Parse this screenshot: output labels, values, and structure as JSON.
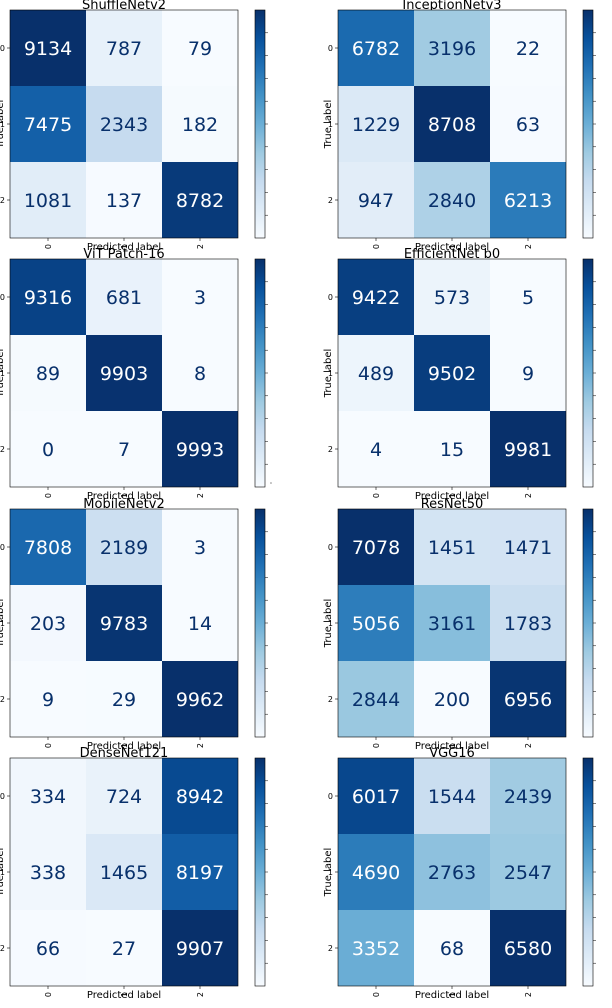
{
  "chart_data": [
    {
      "type": "heatmap",
      "title": "ShuffleNetv2",
      "xlabel": "Predicted label",
      "ylabel": "True label",
      "x_ticks": [
        "0",
        "1",
        "2"
      ],
      "y_ticks": [
        "0",
        "1",
        "2"
      ],
      "colormap": "Blues",
      "values": [
        [
          9134,
          787,
          79
        ],
        [
          7475,
          2343,
          182
        ],
        [
          1081,
          137,
          8782
        ]
      ],
      "colorbar_ticks": []
    },
    {
      "type": "heatmap",
      "title": "InceptionNetv3",
      "xlabel": "Predicted label",
      "ylabel": "True label",
      "x_ticks": [
        "0",
        "1",
        "2"
      ],
      "y_ticks": [
        "0",
        "1",
        "2"
      ],
      "colormap": "Blues",
      "values": [
        [
          6782,
          3196,
          22
        ],
        [
          1229,
          8708,
          63
        ],
        [
          947,
          2840,
          6213
        ]
      ],
      "colorbar_ticks": []
    },
    {
      "type": "heatmap",
      "title": "ViT Patch-16",
      "xlabel": "Predicted label",
      "ylabel": "True label",
      "x_ticks": [
        "0",
        "1",
        "2"
      ],
      "y_ticks": [
        "0",
        "1",
        "2"
      ],
      "colormap": "Blues",
      "values": [
        [
          9316,
          681,
          3
        ],
        [
          89,
          9903,
          8
        ],
        [
          0,
          7,
          9993
        ]
      ],
      "colorbar_ticks": [
        "0"
      ]
    },
    {
      "type": "heatmap",
      "title": "EfficientNet b0",
      "xlabel": "Predicted label",
      "ylabel": "True label",
      "x_ticks": [
        "0",
        "1",
        "2"
      ],
      "y_ticks": [
        "0",
        "1",
        "2"
      ],
      "colormap": "Blues",
      "values": [
        [
          9422,
          573,
          5
        ],
        [
          489,
          9502,
          9
        ],
        [
          4,
          15,
          9981
        ]
      ],
      "colorbar_ticks": []
    },
    {
      "type": "heatmap",
      "title": "MobileNetv2",
      "xlabel": "Predicted label",
      "ylabel": "True label",
      "x_ticks": [
        "0",
        "1",
        "2"
      ],
      "y_ticks": [
        "0",
        "1",
        "2"
      ],
      "colormap": "Blues",
      "values": [
        [
          7808,
          2189,
          3
        ],
        [
          203,
          9783,
          14
        ],
        [
          9,
          29,
          9962
        ]
      ],
      "colorbar_ticks": []
    },
    {
      "type": "heatmap",
      "title": "ResNet50",
      "xlabel": "Predicted label",
      "ylabel": "True label",
      "x_ticks": [
        "0",
        "1",
        "2"
      ],
      "y_ticks": [
        "0",
        "1",
        "2"
      ],
      "colormap": "Blues",
      "values": [
        [
          7078,
          1451,
          1471
        ],
        [
          5056,
          3161,
          1783
        ],
        [
          2844,
          200,
          6956
        ]
      ],
      "colorbar_ticks": []
    },
    {
      "type": "heatmap",
      "title": "DenseNet121",
      "xlabel": "Predicted label",
      "ylabel": "True label",
      "x_ticks": [
        "0",
        "1",
        "2"
      ],
      "y_ticks": [
        "0",
        "1",
        "2"
      ],
      "colormap": "Blues",
      "values": [
        [
          334,
          724,
          8942
        ],
        [
          338,
          1465,
          8197
        ],
        [
          66,
          27,
          9907
        ]
      ],
      "colorbar_ticks": []
    },
    {
      "type": "heatmap",
      "title": "VGG16",
      "xlabel": "Predicted label",
      "ylabel": "True label",
      "x_ticks": [
        "0",
        "1",
        "2"
      ],
      "y_ticks": [
        "0",
        "1",
        "2"
      ],
      "colormap": "Blues",
      "values": [
        [
          6017,
          1544,
          2439
        ],
        [
          4690,
          2763,
          2547
        ],
        [
          3352,
          68,
          6580
        ]
      ],
      "colorbar_ticks": []
    }
  ]
}
